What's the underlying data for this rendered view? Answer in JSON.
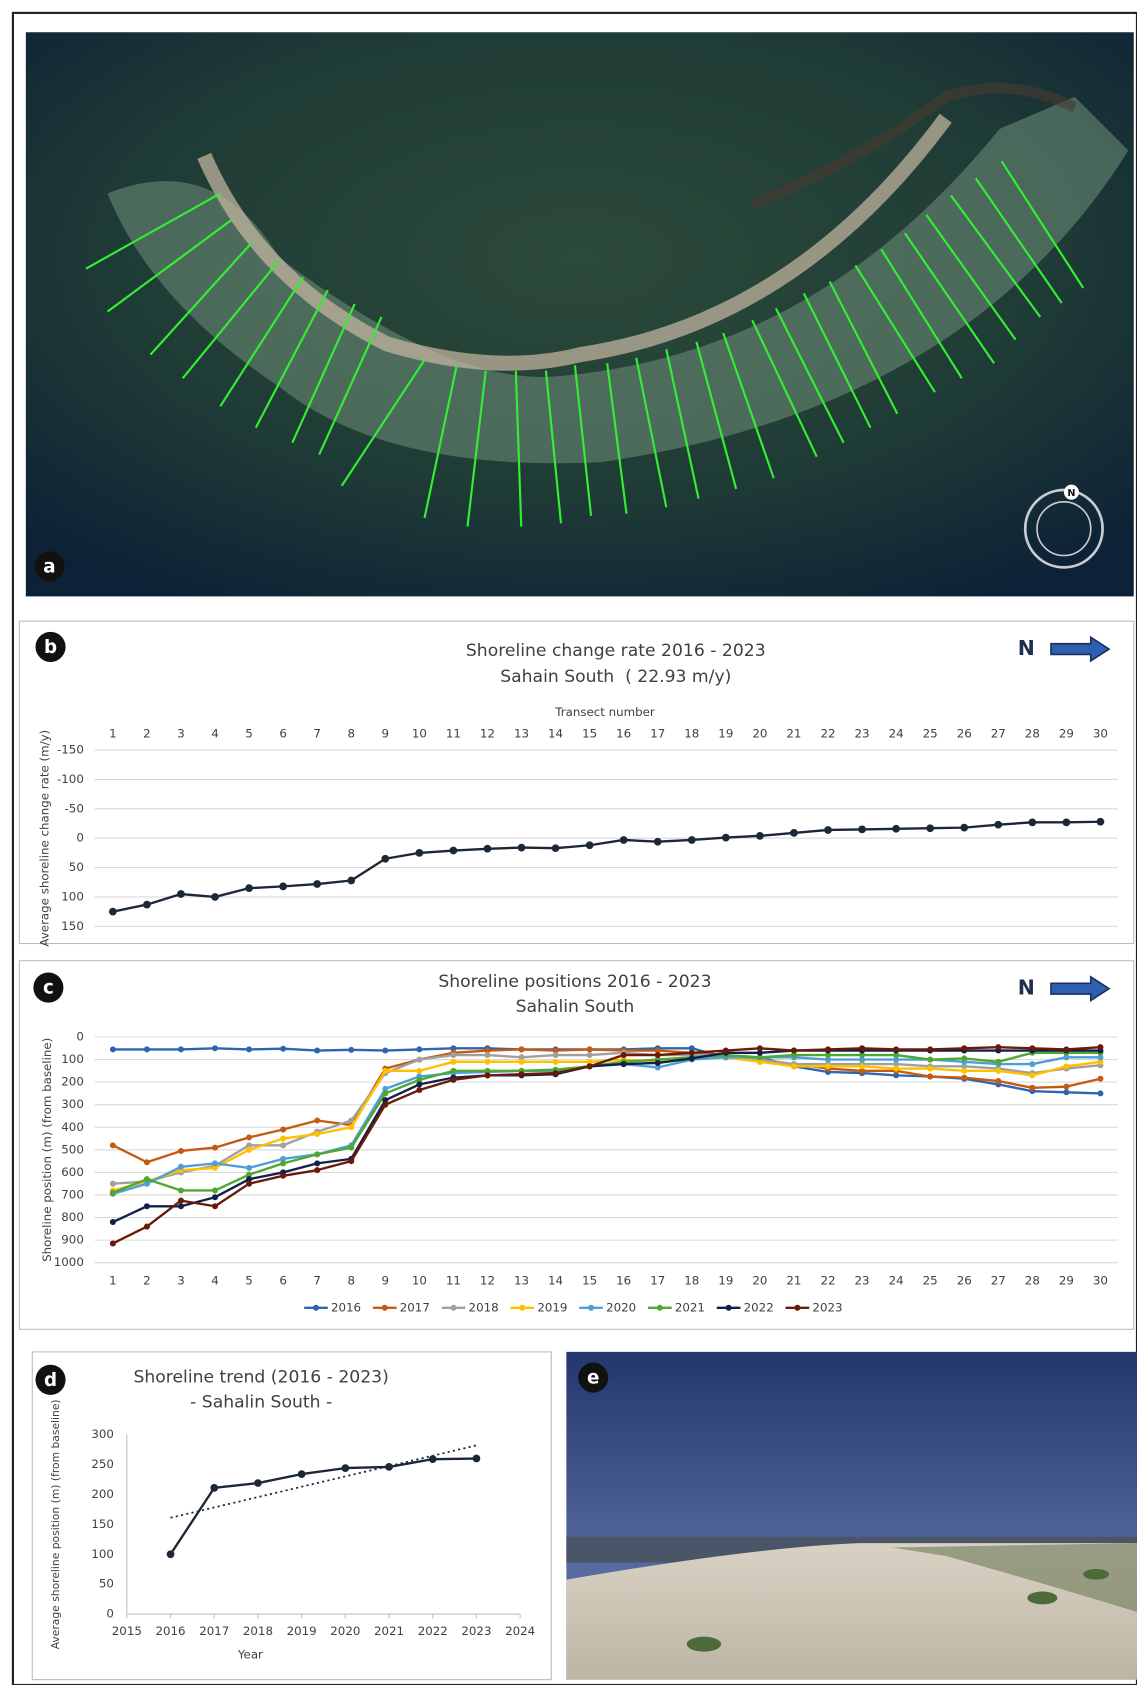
{
  "photos": [
    {
      "panel_label": "a",
      "compass_label": "N"
    },
    {
      "panel_label": "e"
    }
  ],
  "chart_data": [
    {
      "type": "line",
      "panel_label": "b",
      "north_label": "N",
      "title": "Shoreline change rate 2016 - 2023",
      "subtitle": "Sahain South  ( 22.93 m/y)",
      "x_label": "Transect number",
      "y_label": "Average shoreline change rate (m/y)",
      "categories": [
        1,
        2,
        3,
        4,
        5,
        6,
        7,
        8,
        9,
        10,
        11,
        12,
        13,
        14,
        15,
        16,
        17,
        18,
        19,
        20,
        21,
        22,
        23,
        24,
        25,
        26,
        27,
        28,
        29,
        30
      ],
      "values": [
        125,
        113,
        95,
        100,
        85,
        82,
        78,
        72,
        35,
        25,
        21,
        18,
        16,
        17,
        12,
        3,
        6,
        3,
        -1,
        -4,
        -9,
        -14,
        -15,
        -16,
        -17,
        -18,
        -23,
        -27,
        -27,
        -28
      ],
      "color": "#1c2738",
      "ylim": [
        -150,
        150
      ],
      "yticks": [
        -150,
        -100,
        -50,
        0,
        50,
        100,
        150
      ],
      "y_inverted": true,
      "x_axis_position": "top",
      "grid": true
    },
    {
      "type": "line",
      "panel_label": "c",
      "north_label": "N",
      "title": "Shoreline positions 2016 - 2023",
      "subtitle": "Sahalin South",
      "y_label": "Shoreline position (m) (from baseline)",
      "categories": [
        1,
        2,
        3,
        4,
        5,
        6,
        7,
        8,
        9,
        10,
        11,
        12,
        13,
        14,
        15,
        16,
        17,
        18,
        19,
        20,
        21,
        22,
        23,
        24,
        25,
        26,
        27,
        28,
        29,
        30
      ],
      "series": [
        {
          "name": "2016",
          "color": "#2e64b0",
          "values": [
            55,
            55,
            55,
            50,
            55,
            52,
            60,
            57,
            60,
            55,
            50,
            50,
            55,
            55,
            55,
            55,
            50,
            50,
            90,
            90,
            130,
            155,
            160,
            170,
            175,
            185,
            210,
            240,
            245,
            250
          ]
        },
        {
          "name": "2017",
          "color": "#c55a11",
          "values": [
            480,
            555,
            505,
            490,
            445,
            410,
            370,
            390,
            140,
            100,
            70,
            60,
            55,
            60,
            55,
            60,
            60,
            70,
            80,
            110,
            120,
            140,
            150,
            150,
            175,
            180,
            195,
            225,
            220,
            185
          ]
        },
        {
          "name": "2018",
          "color": "#a0a0a0",
          "values": [
            650,
            640,
            600,
            570,
            480,
            480,
            420,
            370,
            160,
            100,
            80,
            80,
            90,
            80,
            80,
            70,
            80,
            80,
            80,
            100,
            120,
            120,
            120,
            120,
            130,
            130,
            140,
            160,
            140,
            125
          ]
        },
        {
          "name": "2019",
          "color": "#ffc000",
          "values": [
            680,
            640,
            590,
            580,
            500,
            450,
            430,
            400,
            150,
            150,
            110,
            110,
            110,
            110,
            110,
            100,
            110,
            90,
            90,
            110,
            130,
            130,
            130,
            140,
            140,
            150,
            150,
            170,
            130,
            110
          ]
        },
        {
          "name": "2020",
          "color": "#4f9fd6",
          "values": [
            695,
            650,
            575,
            560,
            580,
            540,
            520,
            480,
            230,
            175,
            160,
            155,
            150,
            150,
            130,
            120,
            135,
            100,
            90,
            90,
            90,
            100,
            100,
            100,
            100,
            110,
            120,
            120,
            90,
            90
          ]
        },
        {
          "name": "2021",
          "color": "#4ea72e",
          "values": [
            690,
            630,
            680,
            680,
            610,
            560,
            520,
            490,
            250,
            190,
            150,
            150,
            150,
            145,
            130,
            110,
            100,
            90,
            80,
            90,
            80,
            80,
            80,
            80,
            100,
            95,
            110,
            70,
            70,
            70
          ]
        },
        {
          "name": "2022",
          "color": "#12204a",
          "values": [
            820,
            750,
            750,
            710,
            630,
            600,
            560,
            540,
            280,
            210,
            180,
            170,
            170,
            165,
            130,
            120,
            115,
            95,
            70,
            70,
            60,
            60,
            60,
            60,
            60,
            60,
            60,
            60,
            60,
            60
          ]
        },
        {
          "name": "2023",
          "color": "#6b1a0a",
          "values": [
            915,
            840,
            725,
            750,
            650,
            615,
            590,
            550,
            300,
            235,
            190,
            170,
            165,
            160,
            130,
            80,
            80,
            70,
            60,
            50,
            60,
            55,
            50,
            55,
            55,
            50,
            45,
            50,
            55,
            45
          ]
        }
      ],
      "ylim": [
        0,
        1000
      ],
      "yticks": [
        0,
        100,
        200,
        300,
        400,
        500,
        600,
        700,
        800,
        900,
        1000
      ],
      "y_inverted": true,
      "x_axis_position": "bottom",
      "grid": true,
      "legend": "bottom"
    },
    {
      "type": "line",
      "panel_label": "d",
      "title": "Shoreline trend (2016 - 2023)",
      "subtitle": "- Sahalin South -",
      "x_label": "Year",
      "y_label": "Average shoreline position (m) (from baseline)",
      "x": [
        2016,
        2017,
        2018,
        2019,
        2020,
        2021,
        2022,
        2023
      ],
      "values": [
        100,
        211,
        219,
        234,
        244,
        246,
        259,
        260
      ],
      "color": "#1c2738",
      "trendline": {
        "x": [
          2016,
          2023
        ],
        "values": [
          161,
          282
        ]
      },
      "xlim": [
        2015,
        2024
      ],
      "xticks": [
        2015,
        2016,
        2017,
        2018,
        2019,
        2020,
        2021,
        2022,
        2023,
        2024
      ],
      "ylim": [
        0,
        300
      ],
      "yticks": [
        0,
        50,
        100,
        150,
        200,
        250,
        300
      ],
      "grid": false
    }
  ]
}
